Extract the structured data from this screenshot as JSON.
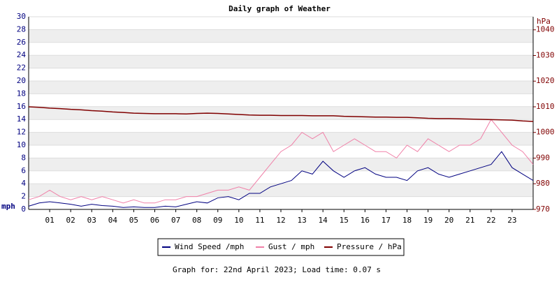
{
  "chart_data": {
    "type": "line",
    "title": "Daily graph of Weather",
    "y_label": "mph",
    "y2_label": "hPa",
    "footer": "Graph for: 22nd April 2023; Load time: 0.07 s",
    "xlim": [
      0,
      24
    ],
    "xticks": [
      {
        "value": 1,
        "label": "01"
      },
      {
        "value": 2,
        "label": "02"
      },
      {
        "value": 3,
        "label": "03"
      },
      {
        "value": 4,
        "label": "04"
      },
      {
        "value": 5,
        "label": "05"
      },
      {
        "value": 6,
        "label": "06"
      },
      {
        "value": 7,
        "label": "07"
      },
      {
        "value": 8,
        "label": "08"
      },
      {
        "value": 9,
        "label": "09"
      },
      {
        "value": 10,
        "label": "10"
      },
      {
        "value": 11,
        "label": "11"
      },
      {
        "value": 12,
        "label": "12"
      },
      {
        "value": 13,
        "label": "13"
      },
      {
        "value": 14,
        "label": "14"
      },
      {
        "value": 15,
        "label": "15"
      },
      {
        "value": 16,
        "label": "16"
      },
      {
        "value": 17,
        "label": "17"
      },
      {
        "value": 18,
        "label": "18"
      },
      {
        "value": 19,
        "label": "19"
      },
      {
        "value": 20,
        "label": "20"
      },
      {
        "value": 21,
        "label": "21"
      },
      {
        "value": 22,
        "label": "22"
      },
      {
        "value": 23,
        "label": "23"
      }
    ],
    "ylim": [
      0,
      30
    ],
    "yticks": [
      0,
      2,
      4,
      6,
      8,
      10,
      12,
      14,
      16,
      18,
      20,
      22,
      24,
      26,
      28,
      30
    ],
    "y2lim": [
      970,
      1045.1
    ],
    "y2ticks": [
      970,
      980,
      990,
      1000,
      1010,
      1020,
      1030,
      1040
    ],
    "grid": true,
    "legend": "bottom",
    "x": [
      0,
      0.5,
      1,
      1.5,
      2,
      2.5,
      3,
      3.5,
      4,
      4.5,
      5,
      5.5,
      6,
      6.5,
      7,
      7.5,
      8,
      8.5,
      9,
      9.5,
      10,
      10.5,
      11,
      11.5,
      12,
      12.5,
      13,
      13.5,
      14,
      14.5,
      15,
      15.5,
      16,
      16.5,
      17,
      17.5,
      18,
      18.5,
      19,
      19.5,
      20,
      20.5,
      21,
      21.5,
      22,
      22.5,
      23,
      23.5,
      24
    ],
    "series": [
      {
        "name": "Wind Speed /mph",
        "color": "#000080",
        "axis": "y",
        "values": [
          0.5,
          1,
          1.2,
          1,
          0.8,
          0.5,
          0.8,
          0.6,
          0.5,
          0.3,
          0.4,
          0.3,
          0.3,
          0.5,
          0.4,
          0.8,
          1.2,
          1,
          1.8,
          2,
          1.5,
          2.5,
          2.5,
          3.5,
          4,
          4.5,
          6,
          5.5,
          7.5,
          6,
          5,
          6,
          6.5,
          5.5,
          5,
          5,
          4.5,
          6,
          6.5,
          5.5,
          5,
          5.5,
          6,
          6.5,
          7,
          9,
          6.5,
          5.5,
          4.5
        ]
      },
      {
        "name": "Gust / mph",
        "color": "#f080a8",
        "axis": "y",
        "values": [
          1.5,
          2,
          3,
          2,
          1.5,
          2,
          1.5,
          2,
          1.5,
          1,
          1.5,
          1,
          1,
          1.5,
          1.5,
          2,
          2,
          2.5,
          3,
          3,
          3.5,
          3,
          5,
          7,
          9,
          10,
          12,
          11,
          12,
          9,
          10,
          11,
          10,
          9,
          9,
          8,
          10,
          9,
          11,
          10,
          9,
          10,
          10,
          11,
          14,
          12,
          10,
          9,
          7
        ]
      },
      {
        "name": "Pressure / hPa",
        "color": "#800000",
        "axis": "y2",
        "values": [
          1010,
          1009.8,
          1009.5,
          1009.3,
          1009,
          1008.8,
          1008.5,
          1008.3,
          1008,
          1007.8,
          1007.5,
          1007.4,
          1007.3,
          1007.3,
          1007.3,
          1007.2,
          1007.4,
          1007.5,
          1007.4,
          1007.2,
          1007,
          1006.8,
          1006.7,
          1006.7,
          1006.6,
          1006.6,
          1006.6,
          1006.5,
          1006.5,
          1006.5,
          1006.3,
          1006.2,
          1006.1,
          1006,
          1006,
          1005.9,
          1005.9,
          1005.7,
          1005.5,
          1005.4,
          1005.4,
          1005.3,
          1005.2,
          1005.1,
          1005,
          1004.9,
          1004.8,
          1004.5,
          1004.3
        ]
      }
    ]
  }
}
